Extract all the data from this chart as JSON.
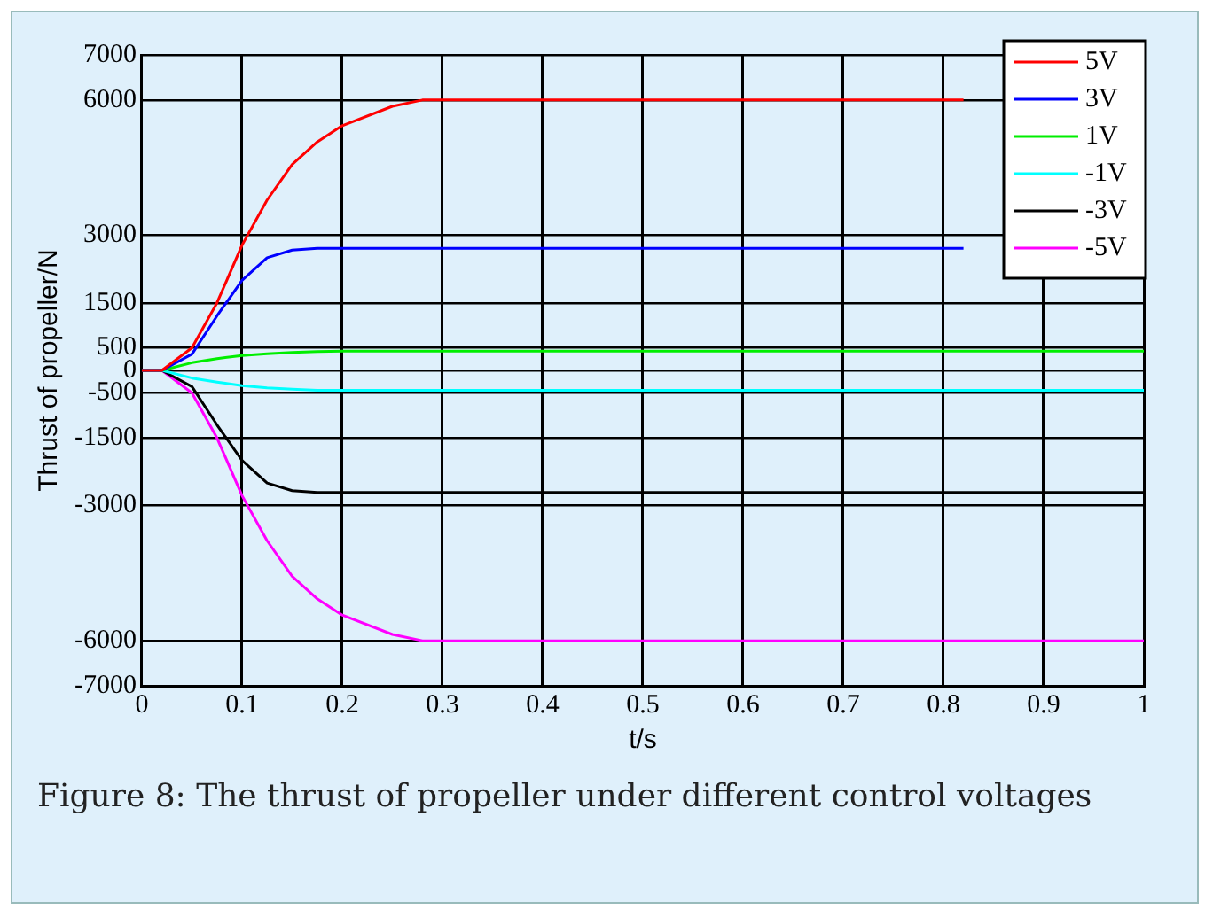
{
  "chart_data": {
    "type": "line",
    "xlabel": "t/s",
    "ylabel": "Thrust of propeller/N",
    "x": [
      0,
      0.02,
      0.05,
      0.075,
      0.1,
      0.125,
      0.15,
      0.175,
      0.2,
      0.25,
      0.28,
      0.4,
      0.6,
      0.82,
      1
    ],
    "series": [
      {
        "name": "5V",
        "color": "#ff0000",
        "values": [
          0,
          0,
          500,
          1500,
          2780,
          3780,
          4570,
          5070,
          5430,
          5860,
          6000,
          6000,
          6000,
          6000,
          null
        ]
      },
      {
        "name": "3V",
        "color": "#0000ff",
        "values": [
          0,
          0,
          360,
          1210,
          2000,
          2500,
          2670,
          2710,
          2710,
          2710,
          2710,
          2710,
          2710,
          2710,
          null
        ]
      },
      {
        "name": "1V",
        "color": "#00ee00",
        "values": [
          0,
          0,
          170,
          260,
          330,
          370,
          400,
          420,
          430,
          430,
          430,
          430,
          430,
          430,
          430
        ]
      },
      {
        "name": "-1V",
        "color": "#00ffff",
        "values": [
          0,
          0,
          -170,
          -260,
          -340,
          -390,
          -420,
          -440,
          -440,
          -440,
          -440,
          -440,
          -440,
          -440,
          -440
        ]
      },
      {
        "name": "-3V",
        "color": "#000000",
        "values": [
          0,
          0,
          -360,
          -1210,
          -2000,
          -2500,
          -2670,
          -2710,
          -2710,
          -2710,
          -2710,
          -2710,
          -2710,
          -2710,
          -2710
        ]
      },
      {
        "name": "-5V",
        "color": "#ff00ff",
        "values": [
          0,
          0,
          -500,
          -1500,
          -2780,
          -3780,
          -4570,
          -5070,
          -5430,
          -5860,
          -6000,
          -6000,
          -6000,
          -6000,
          -6000
        ]
      }
    ],
    "xlim": [
      0,
      1
    ],
    "xticks": [
      0,
      0.1,
      0.2,
      0.3,
      0.4,
      0.5,
      0.6,
      0.7,
      0.8,
      0.9,
      1
    ],
    "ylim": [
      -7000,
      7000
    ],
    "yticks": [
      -7000,
      -6000,
      -3000,
      -1500,
      -500,
      0,
      500,
      1500,
      3000,
      6000,
      7000
    ],
    "grid": true,
    "legend": "top right",
    "marker": "none",
    "line_style": "solid",
    "annotations": [
      "Figure 8: The thrust of propeller under different control voltages"
    ]
  }
}
